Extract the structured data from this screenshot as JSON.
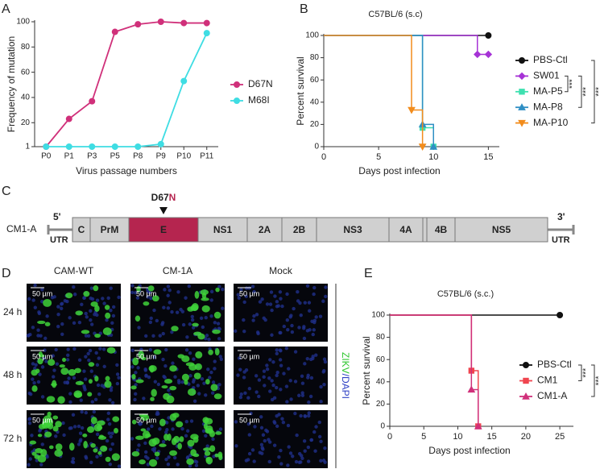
{
  "panel_labels": [
    "A",
    "B",
    "C",
    "D",
    "E"
  ],
  "chart_data": [
    {
      "type": "line",
      "xlabel": "Virus passage numbers",
      "ylabel": "Frequency of mutation",
      "categories": [
        "P0",
        "P1",
        "P3",
        "P5",
        "P8",
        "P9",
        "P10",
        "P11"
      ],
      "ylim": [
        1,
        100
      ],
      "yticks": [
        1,
        20,
        40,
        60,
        80,
        100
      ],
      "series": [
        {
          "name": "D67N",
          "color": "#d0307a",
          "marker": "circle",
          "values": [
            1,
            23,
            37,
            92,
            98,
            100,
            99,
            99
          ]
        },
        {
          "name": "M68I",
          "color": "#3fdde3",
          "marker": "circle",
          "values": [
            1,
            1,
            1,
            1,
            1,
            3,
            53,
            91
          ]
        }
      ]
    },
    {
      "type": "step",
      "title": "C57BL/6 (s.c)",
      "xlabel": "Days post infection",
      "ylabel": "Percent survival",
      "xlim": [
        0,
        16
      ],
      "xticks": [
        0,
        5,
        10,
        15
      ],
      "ylim": [
        0,
        100
      ],
      "yticks": [
        0,
        20,
        40,
        60,
        80,
        100
      ],
      "series": [
        {
          "name": "PBS-Ctl",
          "color": "#111111",
          "marker": "circle",
          "x": [
            0,
            15
          ],
          "values": [
            100,
            100
          ]
        },
        {
          "name": "SW01",
          "color": "#a633d6",
          "marker": "diamond",
          "x": [
            0,
            14,
            15
          ],
          "values": [
            100,
            83,
            83
          ]
        },
        {
          "name": "MA-P5",
          "color": "#3ee0b0",
          "marker": "square",
          "x": [
            0,
            9,
            10
          ],
          "values": [
            100,
            17,
            0
          ]
        },
        {
          "name": "MA-P8",
          "color": "#2f8fc4",
          "marker": "triangle",
          "x": [
            0,
            9,
            10
          ],
          "values": [
            100,
            20,
            0
          ]
        },
        {
          "name": "MA-P10",
          "color": "#f28c1c",
          "marker": "triangle-down",
          "x": [
            0,
            8,
            9
          ],
          "values": [
            100,
            33,
            0
          ]
        }
      ],
      "annotations": [
        "***",
        "***",
        "***"
      ]
    },
    {
      "type": "step",
      "title": "C57BL/6 (s.c.)",
      "xlabel": "Days post infection",
      "ylabel": "Percent survival",
      "xlim": [
        0,
        27
      ],
      "xticks": [
        0,
        5,
        10,
        15,
        20,
        25
      ],
      "ylim": [
        0,
        100
      ],
      "yticks": [
        0,
        20,
        40,
        60,
        80,
        100
      ],
      "series": [
        {
          "name": "PBS-Ctl",
          "color": "#111111",
          "marker": "circle",
          "x": [
            0,
            25
          ],
          "values": [
            100,
            100
          ]
        },
        {
          "name": "CM1",
          "color": "#f0454f",
          "marker": "square",
          "x": [
            0,
            12,
            13
          ],
          "values": [
            100,
            50,
            0
          ]
        },
        {
          "name": "CM1-A",
          "color": "#d0307a",
          "marker": "triangle",
          "x": [
            0,
            12,
            13
          ],
          "values": [
            100,
            33,
            0
          ]
        }
      ],
      "annotations": [
        "***",
        "***"
      ]
    }
  ],
  "genome": {
    "label": "CM1-A",
    "five_prime": "5'",
    "three_prime": "3'",
    "utr": [
      "UTR",
      "UTR"
    ],
    "mutation": [
      "D67",
      "N"
    ],
    "segments": [
      "C",
      "PrM",
      "E",
      "NS1",
      "2A",
      "2B",
      "NS3",
      "4A",
      "4B",
      "NS5"
    ]
  },
  "microscopy": {
    "columns": [
      "CAM-WT",
      "CM-1A",
      "Mock"
    ],
    "rows": [
      "24 h",
      "48 h",
      "72 h"
    ],
    "scale_bar": "50 µm",
    "stain_label": [
      "ZIKV",
      "/DAPI"
    ]
  }
}
